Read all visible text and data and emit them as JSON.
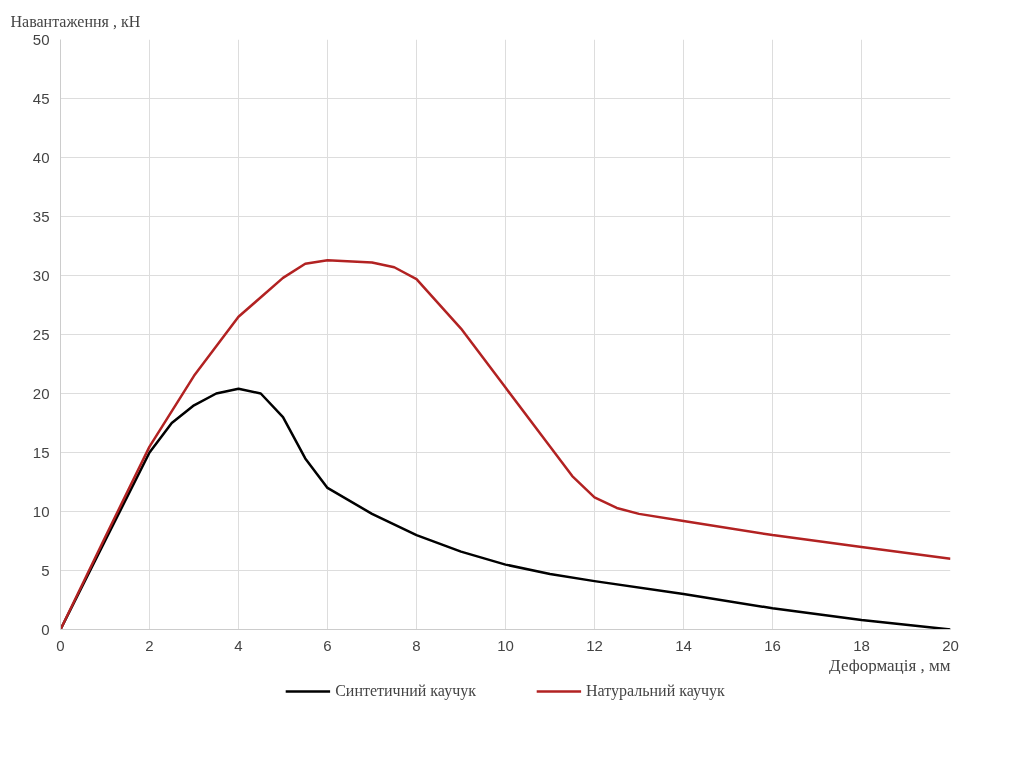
{
  "chart_data": {
    "type": "line",
    "xlabel": "Деформація , мм",
    "ylabel": "Навантаження , кН",
    "series": [
      {
        "name": "Синтетичний каучук",
        "color": "#000000",
        "x": [
          0,
          1,
          2,
          2.5,
          3,
          3.5,
          4,
          4.5,
          5,
          5.5,
          6,
          7,
          8,
          9,
          10,
          11,
          12,
          14,
          16,
          18,
          20
        ],
        "values": [
          0,
          7.5,
          15,
          17.5,
          19,
          20,
          20.4,
          20,
          18,
          14.5,
          12,
          9.8,
          8,
          6.6,
          5.5,
          4.7,
          4.1,
          3,
          1.8,
          0.8,
          0
        ]
      },
      {
        "name": "Натуральний каучук",
        "color": "#b22222",
        "x": [
          0,
          1,
          2,
          3,
          4,
          5,
          5.5,
          6,
          7,
          7.5,
          8,
          9,
          10,
          11,
          11.5,
          12,
          12.5,
          13,
          14,
          16,
          18,
          20
        ],
        "values": [
          0,
          7.8,
          15.5,
          21.5,
          26.5,
          29.8,
          31,
          31.3,
          31.1,
          30.7,
          29.7,
          25.5,
          20.5,
          15.5,
          13,
          11.2,
          10.3,
          9.8,
          9.2,
          8,
          7,
          6
        ]
      }
    ],
    "xlim": [
      0,
      20
    ],
    "ylim": [
      0,
      50
    ],
    "xticks": [
      0,
      2,
      4,
      6,
      8,
      10,
      12,
      14,
      16,
      18,
      20
    ],
    "yticks": [
      0,
      5,
      10,
      15,
      20,
      25,
      30,
      35,
      40,
      45,
      50
    ],
    "grid": true,
    "legend": "bottom",
    "marker": "none",
    "line_style": "solid"
  }
}
